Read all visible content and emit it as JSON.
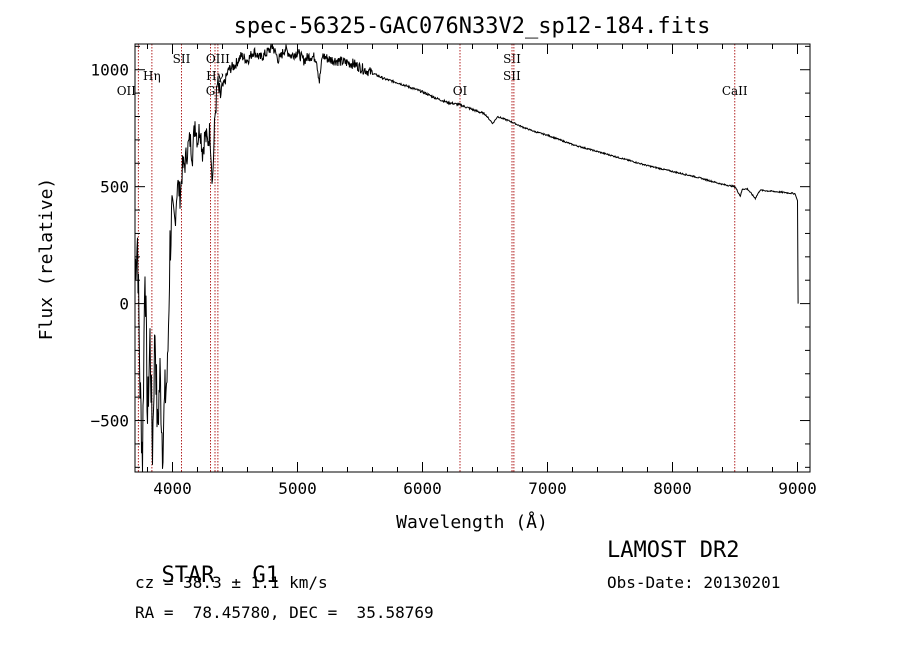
{
  "chart_data": {
    "type": "line",
    "title": "spec-56325-GAC076N33V2_sp12-184.fits",
    "xlabel": "Wavelength (Å)",
    "ylabel": "Flux (relative)",
    "xlim": [
      3700,
      9100
    ],
    "ylim": [
      -720,
      1110
    ],
    "x_ticks": [
      4000,
      5000,
      6000,
      7000,
      8000,
      9000
    ],
    "y_ticks": [
      -500,
      0,
      500,
      1000
    ],
    "grid": false,
    "series": [
      {
        "x": [
          3700,
          3720,
          3740,
          3760,
          3780,
          3800,
          3820,
          3840,
          3860,
          3880,
          3900,
          3920,
          3940,
          3960,
          3980,
          4000,
          4020,
          4040,
          4060,
          4080,
          4100,
          4120,
          4140,
          4160,
          4180,
          4200,
          4220,
          4240,
          4260,
          4280,
          4300,
          4320,
          4340,
          4360,
          4380,
          4400,
          4450,
          4500,
          4550,
          4600,
          4650,
          4700,
          4750,
          4800,
          4850,
          4900,
          4950,
          5000,
          5050,
          5100,
          5150,
          5175,
          5200,
          5250,
          5300,
          5350,
          5400,
          5450,
          5500,
          5600,
          5700,
          5800,
          5900,
          6000,
          6100,
          6200,
          6300,
          6400,
          6500,
          6563,
          6600,
          6700,
          6800,
          6900,
          7000,
          7200,
          7400,
          7600,
          7800,
          8000,
          8200,
          8400,
          8500,
          8542,
          8560,
          8600,
          8662,
          8700,
          8800,
          8900,
          8980,
          9000,
          9005
        ],
        "y": [
          150,
          280,
          -350,
          -650,
          200,
          -500,
          -150,
          -620,
          -100,
          -550,
          -300,
          -600,
          -400,
          -300,
          250,
          400,
          350,
          520,
          460,
          580,
          600,
          660,
          700,
          640,
          780,
          700,
          760,
          650,
          720,
          690,
          740,
          520,
          800,
          940,
          880,
          920,
          1000,
          1020,
          1060,
          1040,
          1080,
          1050,
          1070,
          1100,
          1040,
          1090,
          1060,
          1075,
          1040,
          1060,
          1050,
          950,
          1060,
          1045,
          1040,
          1035,
          1030,
          1025,
          1010,
          985,
          960,
          945,
          925,
          905,
          880,
          860,
          850,
          830,
          810,
          770,
          800,
          780,
          755,
          735,
          720,
          680,
          650,
          620,
          590,
          565,
          540,
          510,
          500,
          460,
          490,
          490,
          450,
          485,
          480,
          475,
          470,
          440,
          0
        ]
      }
    ],
    "lines": [
      {
        "label": "OII",
        "x": 3727
      },
      {
        "label": "Hη",
        "x": 3835
      },
      {
        "label": "SII",
        "x": 4072
      },
      {
        "label": "G",
        "x": 4304
      },
      {
        "label": "Hγ",
        "x": 4340
      },
      {
        "label": "OIII",
        "x": 4363
      },
      {
        "label": "OI",
        "x": 6300
      },
      {
        "label": "SII",
        "x": 6716
      },
      {
        "label": "SII",
        "x": 6731
      },
      {
        "label": "CaII",
        "x": 8498
      }
    ]
  },
  "info": {
    "object_type": "STAR",
    "subclass": "G1",
    "survey": "LAMOST DR2",
    "cz_line": "cz = 38.3 ± 1.1 km/s",
    "obs_date_line": "Obs-Date: 20130201",
    "radec_line": "RA =  78.45780, DEC =  35.58769"
  },
  "colors": {
    "line_marker": "#b22222",
    "spectrum": "#000000",
    "axes": "#000000"
  }
}
